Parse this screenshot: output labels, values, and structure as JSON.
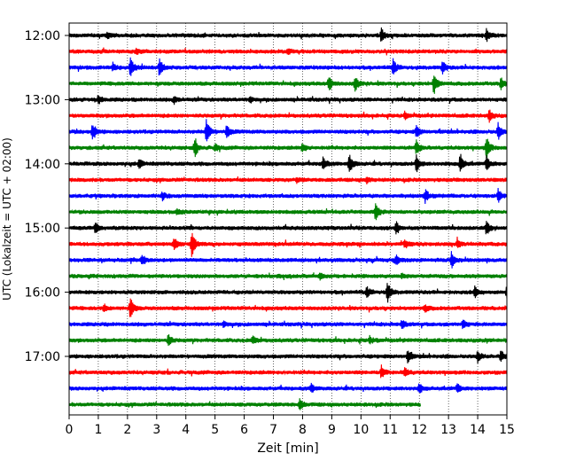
{
  "chart_data": {
    "type": "line",
    "title": "",
    "xlabel": "Zeit  [min]",
    "ylabel": "UTC (Lokalzeit = UTC + 02:00)",
    "xlim": [
      0,
      15
    ],
    "x_ticks": [
      "0",
      "1",
      "2",
      "3",
      "4",
      "5",
      "6",
      "7",
      "8",
      "9",
      "10",
      "11",
      "12",
      "13",
      "14",
      "15"
    ],
    "y_ticks": [
      "12:00",
      "13:00",
      "14:00",
      "15:00",
      "16:00",
      "17:00"
    ],
    "grid": "vertical dotted at each minute",
    "colors": [
      "#000000",
      "#ff0000",
      "#0000ff",
      "#008000"
    ],
    "row_interval_minutes": 15,
    "series": [
      {
        "start": "12:00",
        "end_min": 15,
        "color": "#000000",
        "events": [
          [
            10.7,
            1.0
          ],
          [
            14.3,
            0.8
          ],
          [
            1.3,
            0.4
          ]
        ]
      },
      {
        "start": "12:15",
        "end_min": 15,
        "color": "#ff0000",
        "events": [
          [
            2.3,
            0.4
          ],
          [
            7.5,
            0.3
          ]
        ]
      },
      {
        "start": "12:30",
        "end_min": 15,
        "color": "#0000ff",
        "events": [
          [
            2.1,
            1.4
          ],
          [
            3.1,
            1.2
          ],
          [
            11.1,
            1.1
          ],
          [
            12.8,
            0.9
          ],
          [
            1.5,
            0.5
          ]
        ]
      },
      {
        "start": "12:45",
        "end_min": 15,
        "color": "#008000",
        "events": [
          [
            8.9,
            1.0
          ],
          [
            9.8,
            1.1
          ],
          [
            12.5,
            1.5
          ],
          [
            14.8,
            0.8
          ]
        ]
      },
      {
        "start": "13:00",
        "end_min": 15,
        "color": "#000000",
        "events": [
          [
            1.0,
            0.6
          ],
          [
            3.6,
            0.5
          ],
          [
            6.2,
            0.4
          ]
        ]
      },
      {
        "start": "13:15",
        "end_min": 15,
        "color": "#ff0000",
        "events": [
          [
            14.4,
            0.8
          ],
          [
            11.5,
            0.4
          ]
        ]
      },
      {
        "start": "13:30",
        "end_min": 15,
        "color": "#0000ff",
        "events": [
          [
            0.8,
            1.3
          ],
          [
            4.7,
            2.0
          ],
          [
            5.4,
            0.9
          ],
          [
            11.9,
            0.9
          ],
          [
            14.7,
            1.2
          ]
        ]
      },
      {
        "start": "13:45",
        "end_min": 15,
        "color": "#008000",
        "events": [
          [
            4.3,
            1.3
          ],
          [
            8.0,
            0.6
          ],
          [
            11.9,
            1.1
          ],
          [
            14.3,
            1.6
          ],
          [
            5.0,
            0.5
          ]
        ]
      },
      {
        "start": "14:00",
        "end_min": 15,
        "color": "#000000",
        "events": [
          [
            8.7,
            1.0
          ],
          [
            9.6,
            1.5
          ],
          [
            11.9,
            1.1
          ],
          [
            13.4,
            1.4
          ],
          [
            14.3,
            1.0
          ],
          [
            2.4,
            0.6
          ]
        ]
      },
      {
        "start": "14:15",
        "end_min": 15,
        "color": "#ff0000",
        "events": [
          [
            10.2,
            0.4
          ],
          [
            7.8,
            0.3
          ]
        ]
      },
      {
        "start": "14:30",
        "end_min": 15,
        "color": "#0000ff",
        "events": [
          [
            12.2,
            0.9
          ],
          [
            14.7,
            0.9
          ],
          [
            3.2,
            0.5
          ]
        ]
      },
      {
        "start": "14:45",
        "end_min": 15,
        "color": "#008000",
        "events": [
          [
            10.5,
            1.4
          ],
          [
            3.7,
            0.4
          ]
        ]
      },
      {
        "start": "15:00",
        "end_min": 15,
        "color": "#000000",
        "events": [
          [
            0.9,
            0.8
          ],
          [
            11.2,
            0.8
          ],
          [
            14.3,
            0.9
          ]
        ]
      },
      {
        "start": "15:15",
        "end_min": 15,
        "color": "#ff0000",
        "events": [
          [
            4.2,
            2.0
          ],
          [
            3.6,
            0.8
          ],
          [
            11.5,
            0.6
          ],
          [
            13.3,
            0.5
          ]
        ]
      },
      {
        "start": "15:30",
        "end_min": 15,
        "color": "#0000ff",
        "events": [
          [
            2.5,
            0.7
          ],
          [
            11.2,
            0.7
          ],
          [
            13.1,
            1.1
          ]
        ]
      },
      {
        "start": "15:45",
        "end_min": 15,
        "color": "#008000",
        "events": [
          [
            8.6,
            0.4
          ],
          [
            11.4,
            0.3
          ]
        ]
      },
      {
        "start": "16:00",
        "end_min": 15,
        "color": "#000000",
        "events": [
          [
            10.9,
            1.6
          ],
          [
            10.2,
            0.7
          ],
          [
            13.9,
            0.8
          ],
          [
            15.0,
            1.0
          ]
        ]
      },
      {
        "start": "16:15",
        "end_min": 15,
        "color": "#ff0000",
        "events": [
          [
            2.1,
            1.5
          ],
          [
            1.2,
            0.5
          ],
          [
            12.2,
            0.5
          ]
        ]
      },
      {
        "start": "16:30",
        "end_min": 15,
        "color": "#0000ff",
        "events": [
          [
            11.4,
            0.6
          ],
          [
            13.5,
            0.7
          ],
          [
            5.3,
            0.4
          ]
        ]
      },
      {
        "start": "16:45",
        "end_min": 15,
        "color": "#008000",
        "events": [
          [
            3.4,
            0.8
          ],
          [
            6.3,
            0.6
          ],
          [
            10.3,
            0.5
          ]
        ]
      },
      {
        "start": "17:00",
        "end_min": 15,
        "color": "#000000",
        "events": [
          [
            11.6,
            0.9
          ],
          [
            14.0,
            0.8
          ],
          [
            14.8,
            0.8
          ]
        ]
      },
      {
        "start": "17:15",
        "end_min": 15,
        "color": "#ff0000",
        "events": [
          [
            10.7,
            0.8
          ],
          [
            11.5,
            0.7
          ]
        ]
      },
      {
        "start": "17:30",
        "end_min": 15,
        "color": "#0000ff",
        "events": [
          [
            8.3,
            0.6
          ],
          [
            12.0,
            0.6
          ],
          [
            13.3,
            0.6
          ]
        ]
      },
      {
        "start": "17:45",
        "end_min": 12.05,
        "color": "#008000",
        "events": [
          [
            7.9,
            0.7
          ]
        ]
      }
    ]
  }
}
